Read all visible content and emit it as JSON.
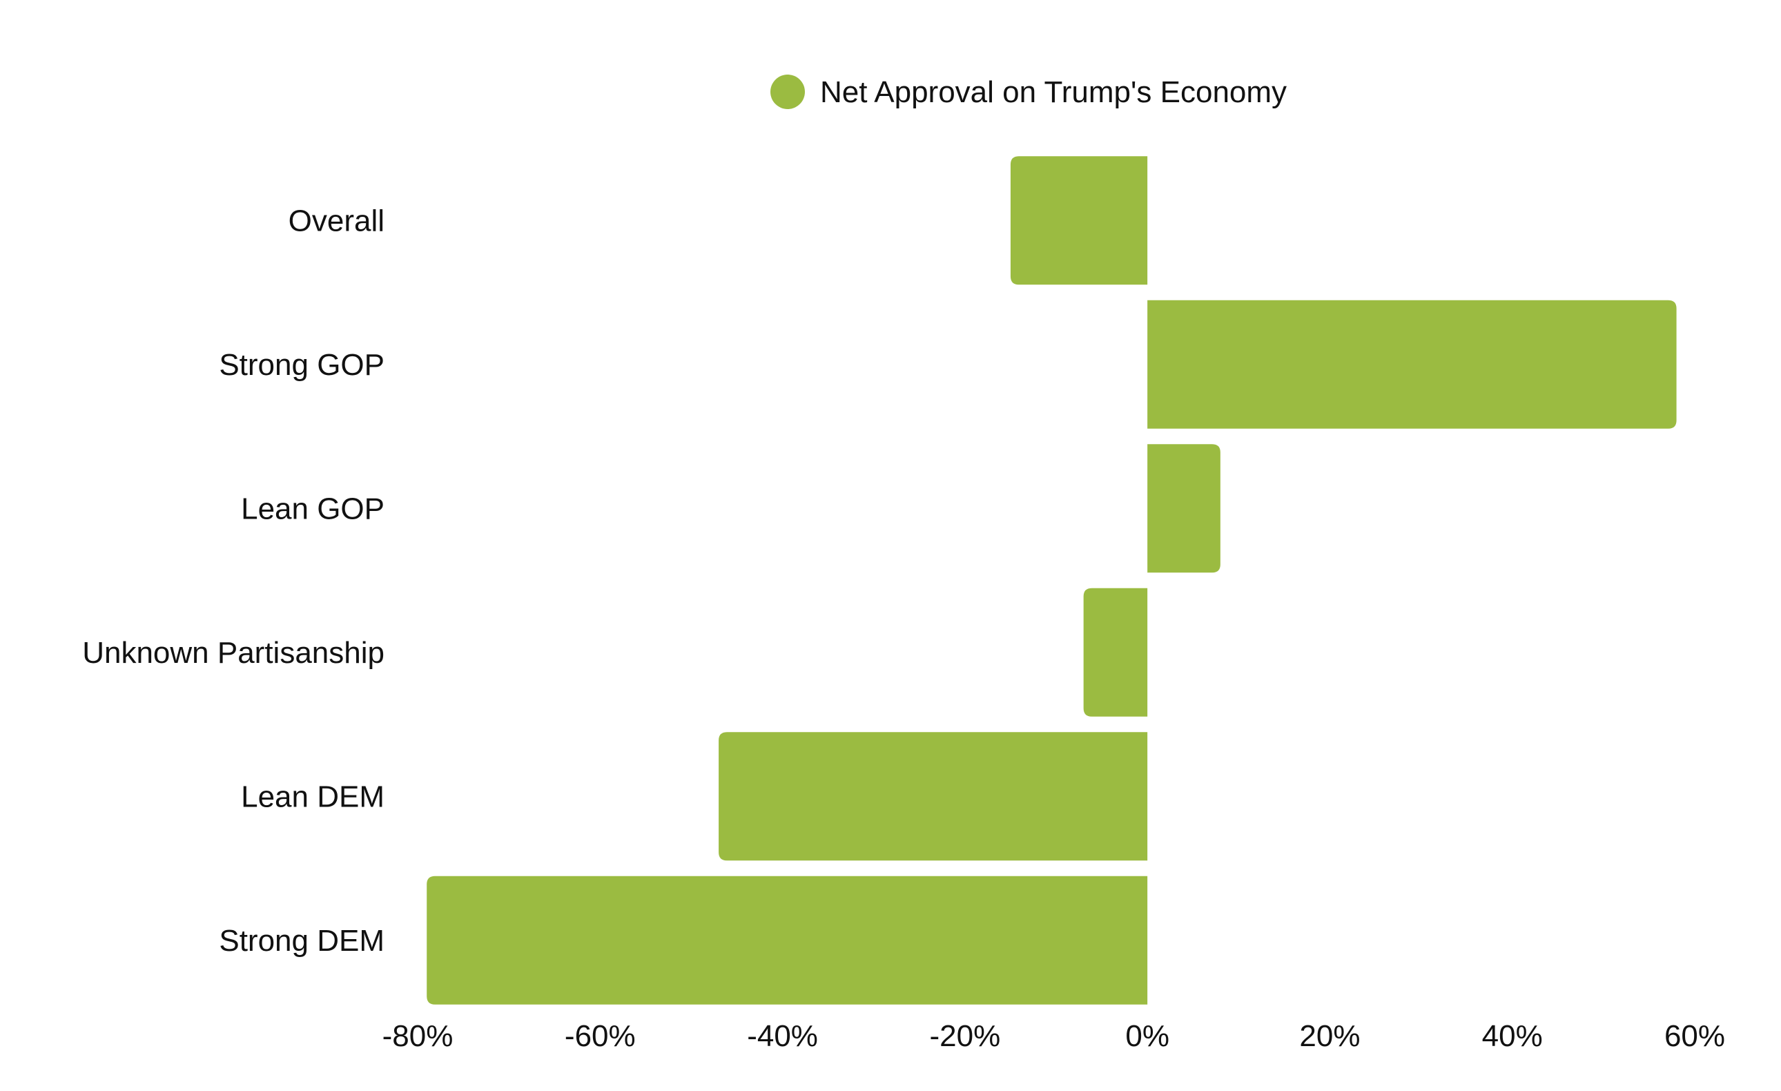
{
  "legend": {
    "label": "Net Approval on Trump's Economy"
  },
  "colors": {
    "bar": "#9bbb41",
    "text": "#111111",
    "background": "#ffffff"
  },
  "chart_data": {
    "type": "bar",
    "orientation": "horizontal",
    "title": "",
    "xlabel": "",
    "ylabel": "",
    "categories": [
      "Overall",
      "Strong GOP",
      "Lean GOP",
      "Unknown Partisanship",
      "Lean DEM",
      "Strong DEM"
    ],
    "series": [
      {
        "name": "Net Approval on Trump's Economy",
        "values": [
          -15,
          58,
          8,
          -7,
          -47,
          -79
        ]
      }
    ],
    "xlim": [
      -80,
      60
    ],
    "xticks": [
      -80,
      -60,
      -40,
      -20,
      0,
      20,
      40,
      60
    ],
    "xtick_labels": [
      "-80%",
      "-60%",
      "-40%",
      "-20%",
      "0%",
      "20%",
      "40%",
      "60%"
    ],
    "grid": false,
    "legend_position": "top-center"
  }
}
